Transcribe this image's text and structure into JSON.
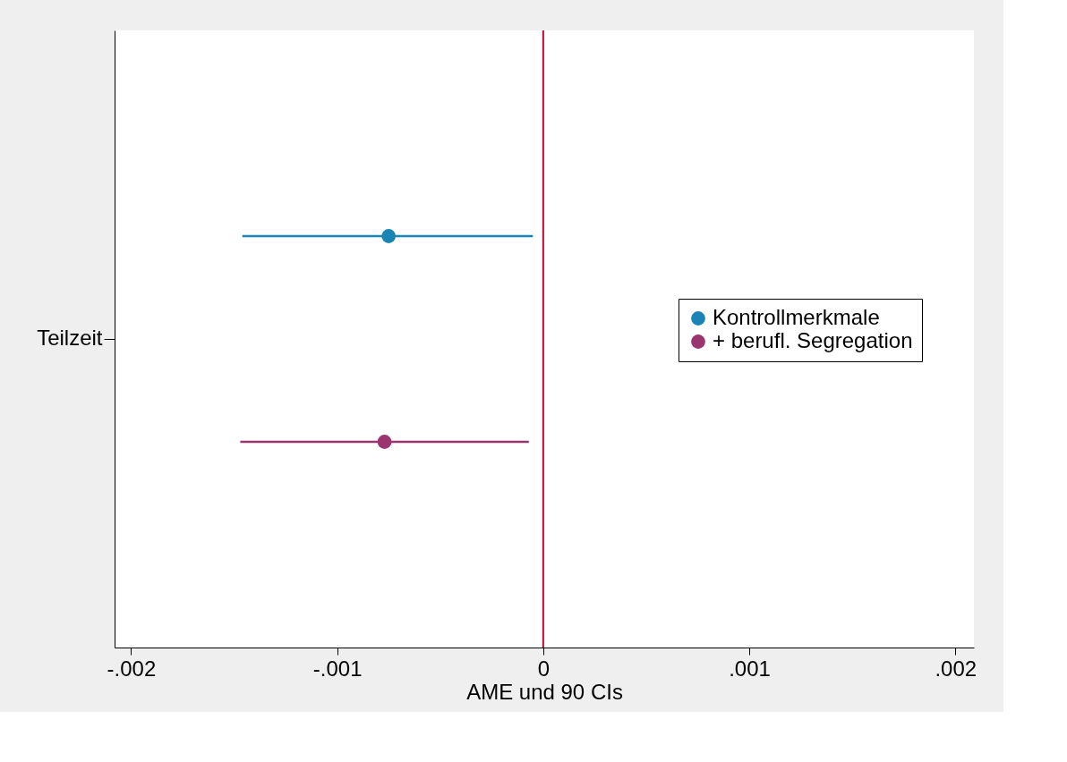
{
  "chart_data": {
    "type": "scatter",
    "orientation": "horizontal",
    "xlabel": "AME und 90 CIs",
    "categories": [
      "Teilzeit"
    ],
    "series": [
      {
        "name": "Kontrollmerkmale",
        "color": "#1a85b4",
        "values": [
          -0.00075
        ],
        "errors": [
          [
            -0.00146,
            -5e-05
          ]
        ]
      },
      {
        "name": "+ berufl. Segregation",
        "color": "#9a3570",
        "values": [
          -0.00077
        ],
        "errors": [
          [
            -0.00147,
            -7e-05
          ]
        ]
      }
    ],
    "xlim": [
      -0.00208,
      0.00209
    ],
    "xticks": [
      {
        "value": -0.002,
        "label": "-.002"
      },
      {
        "value": -0.001,
        "label": "-.001"
      },
      0,
      {
        "value": 0.001,
        "label": ".001"
      },
      {
        "value": 0.002,
        "label": ".002"
      }
    ],
    "ref_lines": [
      {
        "axis": "x",
        "value": 0,
        "color": "#c10534"
      }
    ],
    "marker": "circle",
    "grid": false,
    "legend": "right"
  }
}
